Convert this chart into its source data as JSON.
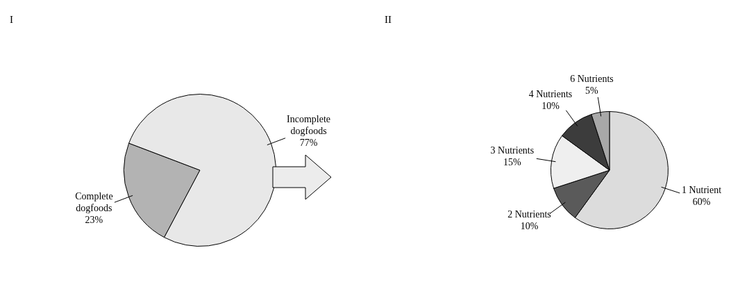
{
  "chart_data": [
    {
      "type": "pie",
      "title": "I",
      "categories": [
        "Complete dogfoods",
        "Incomplete dogfoods"
      ],
      "values": [
        23,
        77
      ],
      "value_labels": [
        "23%",
        "77%"
      ],
      "colors": [
        "#b3b3b3",
        "#e8e8e8"
      ],
      "data_labels": true,
      "legend": false
    },
    {
      "type": "pie",
      "title": "II",
      "categories": [
        "1 Nutrient",
        "2 Nutrients",
        "3 Nutrients",
        "4 Nutrients",
        "6 Nutrients"
      ],
      "values": [
        60,
        10,
        15,
        10,
        5
      ],
      "value_labels": [
        "60%",
        "10%",
        "15%",
        "10%",
        "5%"
      ],
      "colors": [
        "#dcdcdc",
        "#5a5a5a",
        "#efefef",
        "#3c3c3c",
        "#a8a8a8"
      ],
      "data_labels": true,
      "legend": false
    }
  ]
}
